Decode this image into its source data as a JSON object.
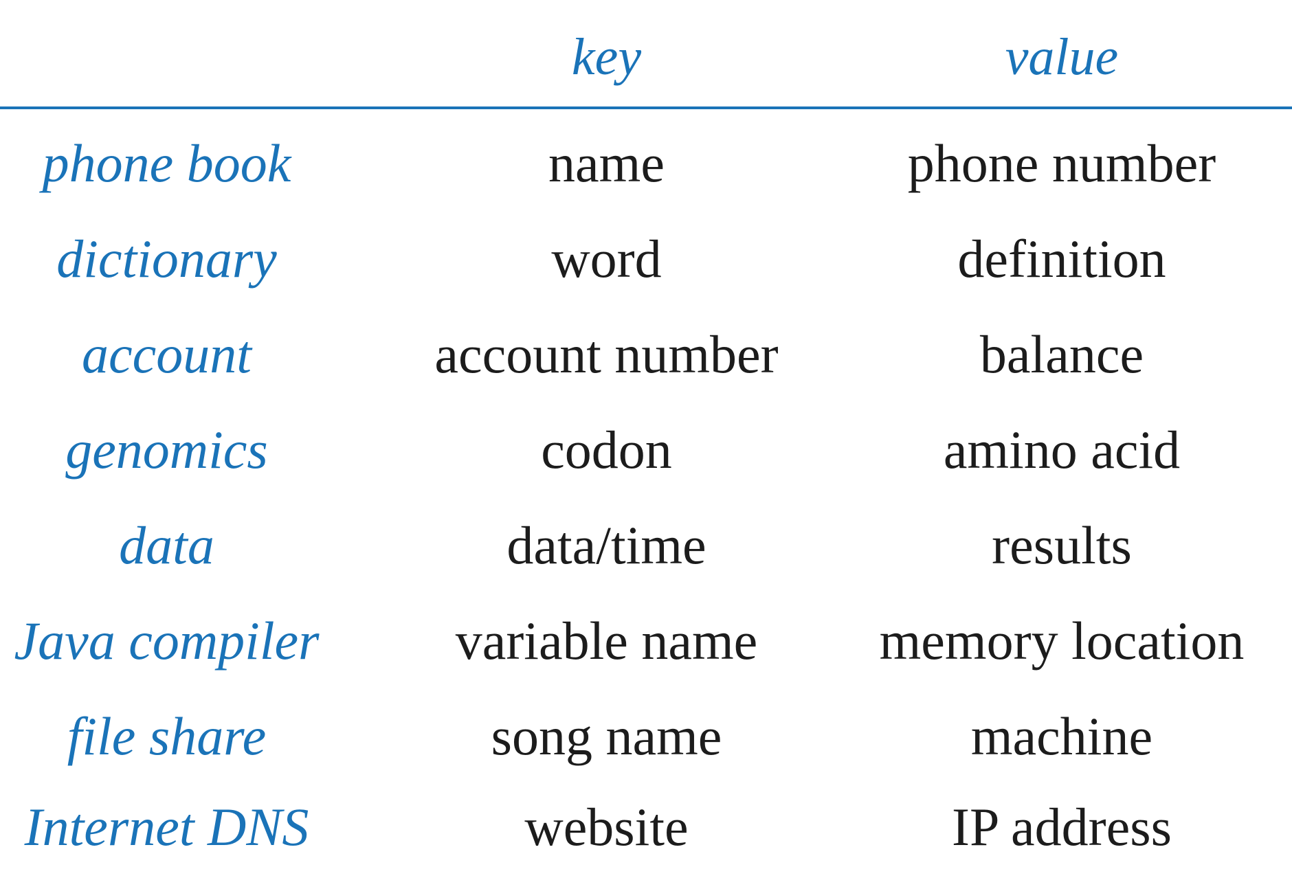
{
  "header": {
    "key_label": "key",
    "value_label": "value"
  },
  "rows": [
    {
      "application": "phone book",
      "key": "name",
      "value": "phone number"
    },
    {
      "application": "dictionary",
      "key": "word",
      "value": "definition"
    },
    {
      "application": "account",
      "key": "account number",
      "value": "balance"
    },
    {
      "application": "genomics",
      "key": "codon",
      "value": "amino acid"
    },
    {
      "application": "data",
      "key": "data/time",
      "value": "results"
    },
    {
      "application": "Java compiler",
      "key": "variable name",
      "value": "memory location"
    },
    {
      "application": "file share",
      "key": "song name",
      "value": "machine"
    },
    {
      "application": "Internet DNS",
      "key": "website",
      "value": "IP address"
    }
  ],
  "colors": {
    "accent": "#1a73b8",
    "text": "#1c1c1c"
  }
}
